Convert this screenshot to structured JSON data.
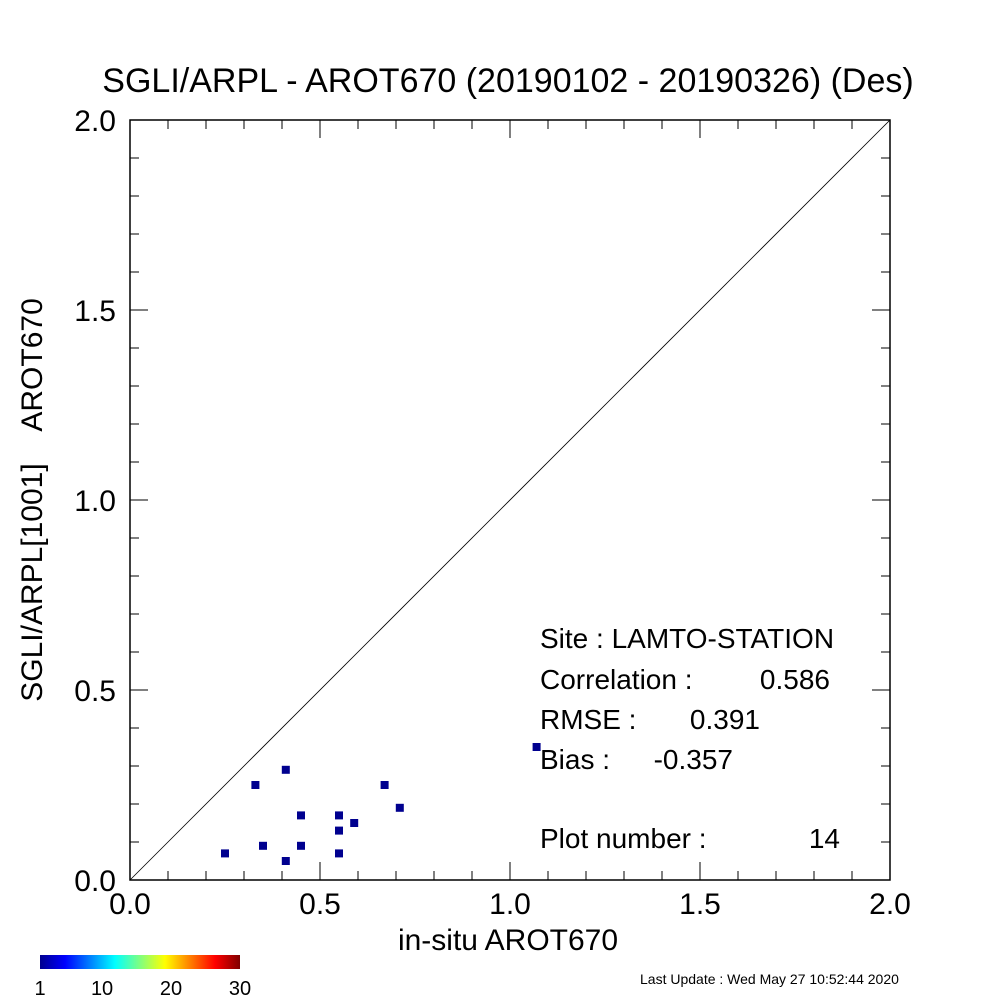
{
  "chart_data": {
    "type": "scatter",
    "title": "SGLI/ARPL - AROT670 (20190102 - 20190326) (Des)",
    "xlabel": "in-situ AROT670",
    "ylabel": "SGLI/ARPL[1001]    AROT670",
    "xlim": [
      0.0,
      2.0
    ],
    "ylim": [
      0.0,
      2.0
    ],
    "x_ticks": [
      "0.0",
      "0.5",
      "1.0",
      "1.5",
      "2.0"
    ],
    "y_ticks": [
      "0.0",
      "0.5",
      "1.0",
      "1.5",
      "2.0"
    ],
    "grid": false,
    "reference_line": "1:1",
    "points": [
      {
        "x": 0.25,
        "y": 0.07
      },
      {
        "x": 0.33,
        "y": 0.25
      },
      {
        "x": 0.35,
        "y": 0.09
      },
      {
        "x": 0.41,
        "y": 0.29
      },
      {
        "x": 0.41,
        "y": 0.05
      },
      {
        "x": 0.45,
        "y": 0.17
      },
      {
        "x": 0.45,
        "y": 0.09
      },
      {
        "x": 0.55,
        "y": 0.17
      },
      {
        "x": 0.55,
        "y": 0.13
      },
      {
        "x": 0.55,
        "y": 0.07
      },
      {
        "x": 0.59,
        "y": 0.15
      },
      {
        "x": 0.67,
        "y": 0.25
      },
      {
        "x": 0.71,
        "y": 0.19
      },
      {
        "x": 1.07,
        "y": 0.35
      }
    ],
    "point_color": "#00008f",
    "stats": [
      {
        "label": "Site : LAMTO-STATION",
        "value": ""
      },
      {
        "label": "Correlation :",
        "value": "0.586"
      },
      {
        "label": "RMSE :",
        "value": "0.391"
      },
      {
        "label": "Bias :",
        "value": "-0.357"
      },
      {
        "label": "Plot number :",
        "value": "14"
      }
    ],
    "colorbar": {
      "ticks": [
        "1",
        "10",
        "20",
        "30"
      ],
      "range": [
        1,
        30
      ],
      "colormap": "jet"
    }
  },
  "footer": {
    "last_update": "Last Update : Wed May 27 10:52:44 2020"
  }
}
